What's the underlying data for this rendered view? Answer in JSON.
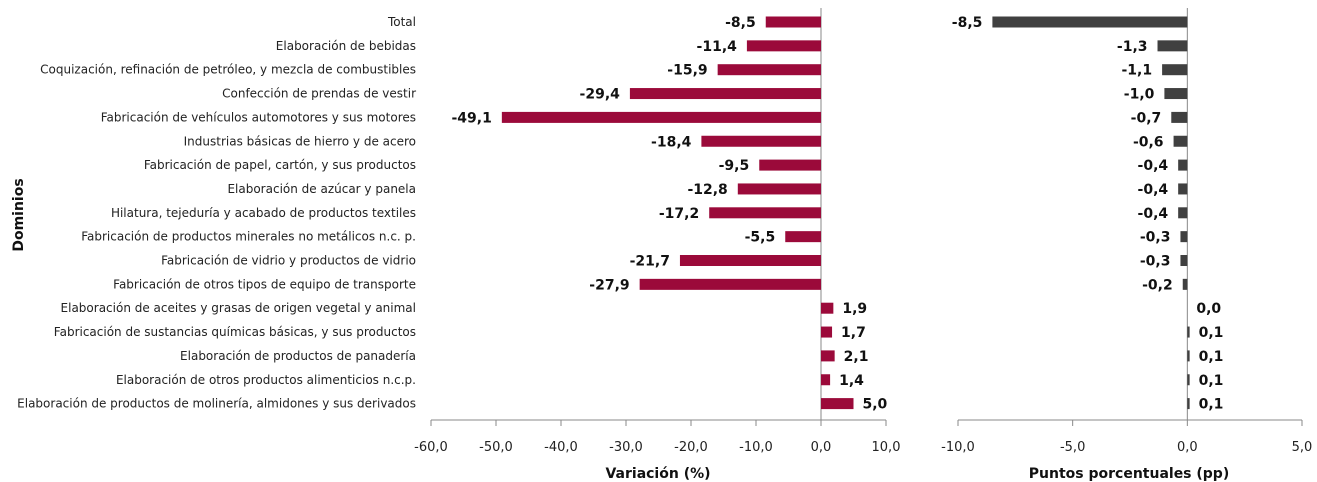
{
  "chart_data": [
    {
      "type": "bar",
      "orientation": "horizontal",
      "categories": [
        "Total",
        "Elaboración de bebidas",
        "Coquización, refinación de petróleo, y mezcla de combustibles",
        "Confección de prendas de vestir",
        "Fabricación de vehículos automotores y sus motores",
        "Industrias básicas de hierro y de acero",
        "Fabricación de papel, cartón, y sus productos",
        "Elaboración de azúcar y panela",
        "Hilatura, tejeduría y acabado de productos textiles",
        "Fabricación de productos minerales no metálicos n.c. p.",
        "Fabricación de vidrio y productos de vidrio",
        "Fabricación de otros tipos de equipo de transporte",
        "Elaboración de aceites y grasas de origen vegetal y animal",
        "Fabricación de sustancias químicas básicas, y sus productos",
        "Elaboración de productos de panadería",
        "Elaboración de otros productos alimenticios n.c.p.",
        "Elaboración de productos de molinería, almidones y sus derivados"
      ],
      "values": [
        -8.5,
        -11.4,
        -15.9,
        -29.4,
        -49.1,
        -18.4,
        -9.5,
        -12.8,
        -17.2,
        -5.5,
        -21.7,
        -27.9,
        1.9,
        1.7,
        2.1,
        1.4,
        5.0
      ],
      "value_labels": [
        "-8,5",
        "-11,4",
        "-15,9",
        "-29,4",
        "-49,1",
        "-18,4",
        "-9,5",
        "-12,8",
        "-17,2",
        "-5,5",
        "-21,7",
        "-27,9",
        "1,9",
        "1,7",
        "2,1",
        "1,4",
        "5,0"
      ],
      "xlabel": "Variación (%)",
      "ylabel": "Dominios",
      "xlim": [
        -60,
        10
      ],
      "ticks": [
        -60,
        -50,
        -40,
        -30,
        -20,
        -10,
        0,
        10
      ],
      "tick_labels": [
        "-60,0",
        "-50,0",
        "-40,0",
        "-30,0",
        "-20,0",
        "-10,0",
        "0,0",
        "10,0"
      ],
      "color": "#9b0a3a",
      "grid": false
    },
    {
      "type": "bar",
      "orientation": "horizontal",
      "values": [
        -8.5,
        -1.3,
        -1.1,
        -1.0,
        -0.7,
        -0.6,
        -0.4,
        -0.4,
        -0.4,
        -0.3,
        -0.3,
        -0.2,
        0.0,
        0.1,
        0.1,
        0.1,
        0.1
      ],
      "value_labels": [
        "-8,5",
        "-1,3",
        "-1,1",
        "-1,0",
        "-0,7",
        "-0,6",
        "-0,4",
        "-0,4",
        "-0,4",
        "-0,3",
        "-0,3",
        "-0,2",
        "0,0",
        "0,1",
        "0,1",
        "0,1",
        "0,1"
      ],
      "xlabel": "Puntos porcentuales (pp)",
      "xlim": [
        -10,
        5
      ],
      "ticks": [
        -10,
        -5,
        0,
        5
      ],
      "tick_labels": [
        "-10,0",
        "-5,0",
        "0,0",
        "5,0"
      ],
      "color": "#404040",
      "grid": false
    }
  ]
}
